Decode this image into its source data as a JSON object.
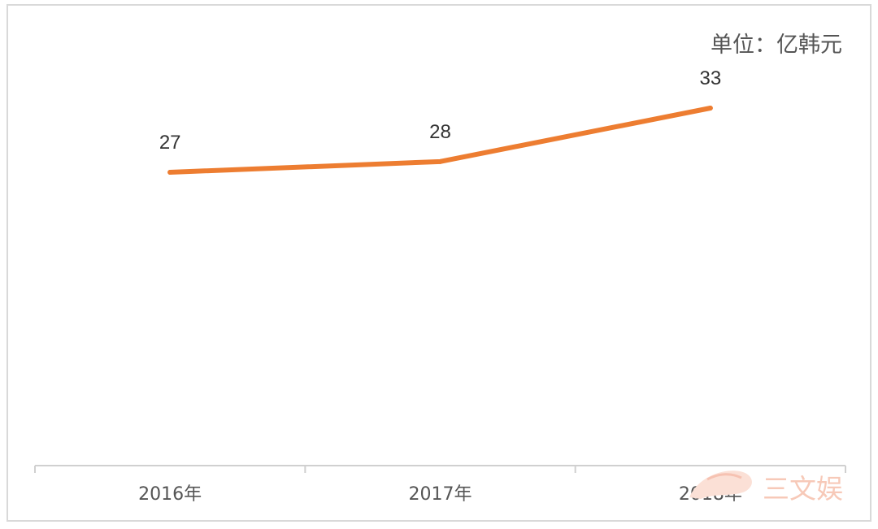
{
  "chart_data": {
    "type": "line",
    "unit_label": "单位：亿韩元",
    "categories": [
      "2016年",
      "2017年",
      "2018年"
    ],
    "series": [
      {
        "values": [
          27,
          28,
          33
        ],
        "color": "#ed7d31"
      }
    ],
    "data_labels": [
      "27",
      "28",
      "33"
    ],
    "ylim": [
      0,
      40
    ],
    "grid": false,
    "legend": "none"
  },
  "watermark": {
    "text": "三文娱",
    "color": "#f7c9b8"
  }
}
